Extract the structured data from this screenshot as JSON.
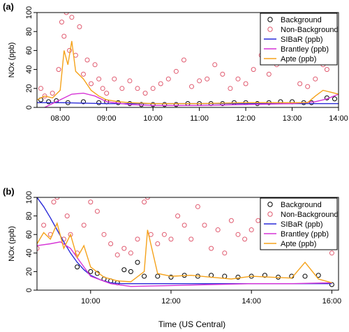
{
  "figure": {
    "xlabel": "Time (US Central)"
  },
  "chart_data": [
    {
      "type": "scatter",
      "panel_label": "(a)",
      "ylabel": "NOx (ppb)",
      "xlim": [
        "07:30",
        "14:00"
      ],
      "ylim": [
        0,
        100
      ],
      "xticks": [
        "08:00",
        "09:00",
        "10:00",
        "11:00",
        "12:00",
        "13:00",
        "14:00"
      ],
      "yticks": [
        0,
        20,
        40,
        60,
        80,
        100
      ],
      "grid": false,
      "legend_position": "top-right",
      "legend": [
        "Background",
        "Non-Background",
        "SIBaR (ppb)",
        "Brantley (ppb)",
        "Apte (ppb)"
      ],
      "colors": {
        "background": "#000000",
        "non_background": "#e05a6f",
        "sibar": "#2a2ad8",
        "brantley": "#d633d6",
        "apte": "#f5a21a"
      },
      "series": [
        {
          "name": "Background",
          "kind": "points",
          "x": [
            "07:35",
            "07:45",
            "07:55",
            "08:10",
            "08:30",
            "08:50",
            "09:00",
            "09:15",
            "09:30",
            "09:45",
            "10:00",
            "10:15",
            "10:30",
            "10:45",
            "11:00",
            "11:15",
            "11:30",
            "11:45",
            "12:00",
            "12:15",
            "12:30",
            "12:45",
            "13:00",
            "13:15",
            "13:25",
            "13:45",
            "13:55"
          ],
          "y": [
            8,
            6,
            7,
            5,
            6,
            5,
            6,
            5,
            4,
            3,
            3,
            3,
            3,
            4,
            4,
            4,
            4,
            5,
            5,
            4,
            5,
            6,
            6,
            5,
            5,
            10,
            9
          ]
        },
        {
          "name": "Non-Background",
          "kind": "points",
          "x": [
            "07:35",
            "07:40",
            "07:50",
            "07:58",
            "08:02",
            "08:05",
            "08:08",
            "08:12",
            "08:15",
            "08:20",
            "08:25",
            "08:30",
            "08:35",
            "08:40",
            "08:45",
            "08:50",
            "08:55",
            "09:00",
            "09:10",
            "09:20",
            "09:30",
            "09:40",
            "09:50",
            "10:00",
            "10:10",
            "10:20",
            "10:30",
            "10:40",
            "10:50",
            "11:00",
            "11:10",
            "11:20",
            "11:30",
            "11:40",
            "11:50",
            "12:00",
            "12:10",
            "12:20",
            "12:30",
            "12:40",
            "12:50",
            "13:00",
            "13:05",
            "13:10",
            "13:20",
            "13:30",
            "13:35",
            "13:40",
            "13:45",
            "13:50",
            "13:55"
          ],
          "y": [
            20,
            12,
            15,
            40,
            90,
            75,
            100,
            60,
            95,
            55,
            85,
            35,
            50,
            25,
            45,
            30,
            20,
            15,
            30,
            20,
            28,
            20,
            15,
            20,
            25,
            30,
            38,
            50,
            22,
            28,
            30,
            45,
            35,
            20,
            30,
            25,
            40,
            55,
            35,
            45,
            70,
            65,
            48,
            25,
            22,
            30,
            55,
            45,
            40,
            65,
            50
          ]
        },
        {
          "name": "SIBaR (ppb)",
          "kind": "line",
          "x": [
            "07:30",
            "08:00",
            "09:00",
            "10:00",
            "11:00",
            "12:00",
            "13:00",
            "14:00"
          ],
          "y": [
            5,
            5,
            4,
            4,
            4,
            4,
            4,
            4
          ]
        },
        {
          "name": "Brantley (ppb)",
          "kind": "line",
          "x": [
            "07:30",
            "07:45",
            "08:00",
            "08:15",
            "08:30",
            "08:45",
            "09:00",
            "09:30",
            "10:00",
            "11:00",
            "12:00",
            "13:00",
            "13:30",
            "13:45",
            "14:00"
          ],
          "y": [
            -4,
            2,
            8,
            14,
            15,
            12,
            6,
            3,
            2,
            2,
            3,
            4,
            6,
            9,
            14
          ]
        },
        {
          "name": "Apte (ppb)",
          "kind": "line",
          "x": [
            "07:30",
            "07:40",
            "07:50",
            "08:00",
            "08:05",
            "08:10",
            "08:15",
            "08:20",
            "08:30",
            "08:40",
            "08:50",
            "09:00",
            "09:15",
            "09:30",
            "10:00",
            "11:00",
            "12:00",
            "13:00",
            "13:20",
            "13:30",
            "13:40",
            "13:50",
            "14:00"
          ],
          "y": [
            8,
            12,
            10,
            18,
            60,
            45,
            70,
            38,
            30,
            18,
            12,
            8,
            6,
            5,
            4,
            4,
            5,
            5,
            5,
            12,
            18,
            16,
            14
          ]
        }
      ]
    },
    {
      "type": "scatter",
      "panel_label": "(b)",
      "ylabel": "NOx (ppb)",
      "xlim": [
        "08:40",
        "16:10"
      ],
      "ylim": [
        0,
        100
      ],
      "xticks": [
        "10:00",
        "12:00",
        "14:00",
        "16:00"
      ],
      "yticks": [
        0,
        20,
        40,
        60,
        80,
        100
      ],
      "grid": false,
      "legend_position": "top-right",
      "legend": [
        "Background",
        "Non-Background",
        "SIBaR (ppb)",
        "Brantley (ppb)",
        "Apte (ppb)"
      ],
      "colors": {
        "background": "#000000",
        "non_background": "#e05a6f",
        "sibar": "#2a2ad8",
        "brantley": "#d633d6",
        "apte": "#f5a21a"
      },
      "series": [
        {
          "name": "Background",
          "kind": "points",
          "x": [
            "09:40",
            "10:00",
            "10:10",
            "10:20",
            "10:30",
            "10:40",
            "10:50",
            "11:00",
            "11:10",
            "11:20",
            "11:40",
            "12:00",
            "12:20",
            "12:40",
            "13:00",
            "13:20",
            "13:40",
            "14:00",
            "14:20",
            "14:40",
            "15:00",
            "15:20",
            "15:40",
            "16:00"
          ],
          "y": [
            25,
            20,
            18,
            12,
            10,
            8,
            22,
            20,
            30,
            15,
            15,
            14,
            16,
            15,
            16,
            15,
            14,
            15,
            16,
            14,
            15,
            15,
            16,
            6
          ]
        },
        {
          "name": "Non-Background",
          "kind": "points",
          "x": [
            "08:40",
            "08:50",
            "09:00",
            "09:05",
            "09:10",
            "09:20",
            "09:25",
            "09:30",
            "09:40",
            "09:50",
            "10:00",
            "10:10",
            "10:20",
            "10:30",
            "10:40",
            "10:50",
            "11:00",
            "11:10",
            "11:20",
            "11:25",
            "11:30",
            "11:40",
            "11:50",
            "12:00",
            "12:10",
            "12:20",
            "12:30",
            "12:40",
            "12:50",
            "13:00",
            "13:10",
            "13:20",
            "13:30",
            "13:40",
            "13:50",
            "14:00",
            "14:10",
            "14:20",
            "14:30",
            "14:40",
            "14:50",
            "15:00",
            "15:10",
            "15:20",
            "15:30",
            "15:40",
            "15:50",
            "16:00"
          ],
          "y": [
            45,
            70,
            60,
            95,
            100,
            55,
            80,
            60,
            40,
            70,
            95,
            85,
            60,
            50,
            38,
            45,
            40,
            55,
            95,
            100,
            60,
            50,
            60,
            55,
            80,
            70,
            55,
            90,
            70,
            45,
            65,
            40,
            75,
            60,
            55,
            65,
            75,
            60,
            70,
            55,
            85,
            60,
            70,
            65,
            50,
            70,
            60,
            40
          ]
        },
        {
          "name": "SIBaR (ppb)",
          "kind": "line",
          "x": [
            "08:40",
            "08:50",
            "09:00",
            "09:10",
            "09:20",
            "09:30",
            "09:40",
            "09:50",
            "10:00",
            "10:15",
            "10:30",
            "10:45",
            "11:00",
            "11:30",
            "12:00",
            "13:00",
            "14:00",
            "15:00",
            "16:00"
          ],
          "y": [
            100,
            90,
            78,
            65,
            52,
            40,
            30,
            22,
            16,
            11,
            8,
            7,
            7,
            7,
            7,
            7,
            7,
            7,
            7
          ]
        },
        {
          "name": "Brantley (ppb)",
          "kind": "line",
          "x": [
            "08:40",
            "09:00",
            "09:15",
            "09:30",
            "09:45",
            "10:00",
            "10:30",
            "11:00",
            "12:00",
            "13:00",
            "14:00",
            "15:00",
            "16:00"
          ],
          "y": [
            48,
            50,
            52,
            45,
            30,
            15,
            7,
            4,
            5,
            6,
            7,
            7,
            8
          ]
        },
        {
          "name": "Apte (ppb)",
          "kind": "line",
          "x": [
            "08:40",
            "08:50",
            "09:00",
            "09:10",
            "09:20",
            "09:30",
            "09:40",
            "09:50",
            "10:00",
            "10:20",
            "10:40",
            "11:00",
            "11:20",
            "11:25",
            "11:40",
            "12:00",
            "12:30",
            "13:00",
            "13:30",
            "14:00",
            "14:30",
            "15:00",
            "15:20",
            "15:40",
            "16:00"
          ],
          "y": [
            50,
            62,
            55,
            72,
            45,
            60,
            35,
            48,
            25,
            14,
            10,
            9,
            20,
            65,
            18,
            15,
            16,
            14,
            12,
            15,
            14,
            13,
            30,
            12,
            8
          ]
        }
      ]
    }
  ]
}
